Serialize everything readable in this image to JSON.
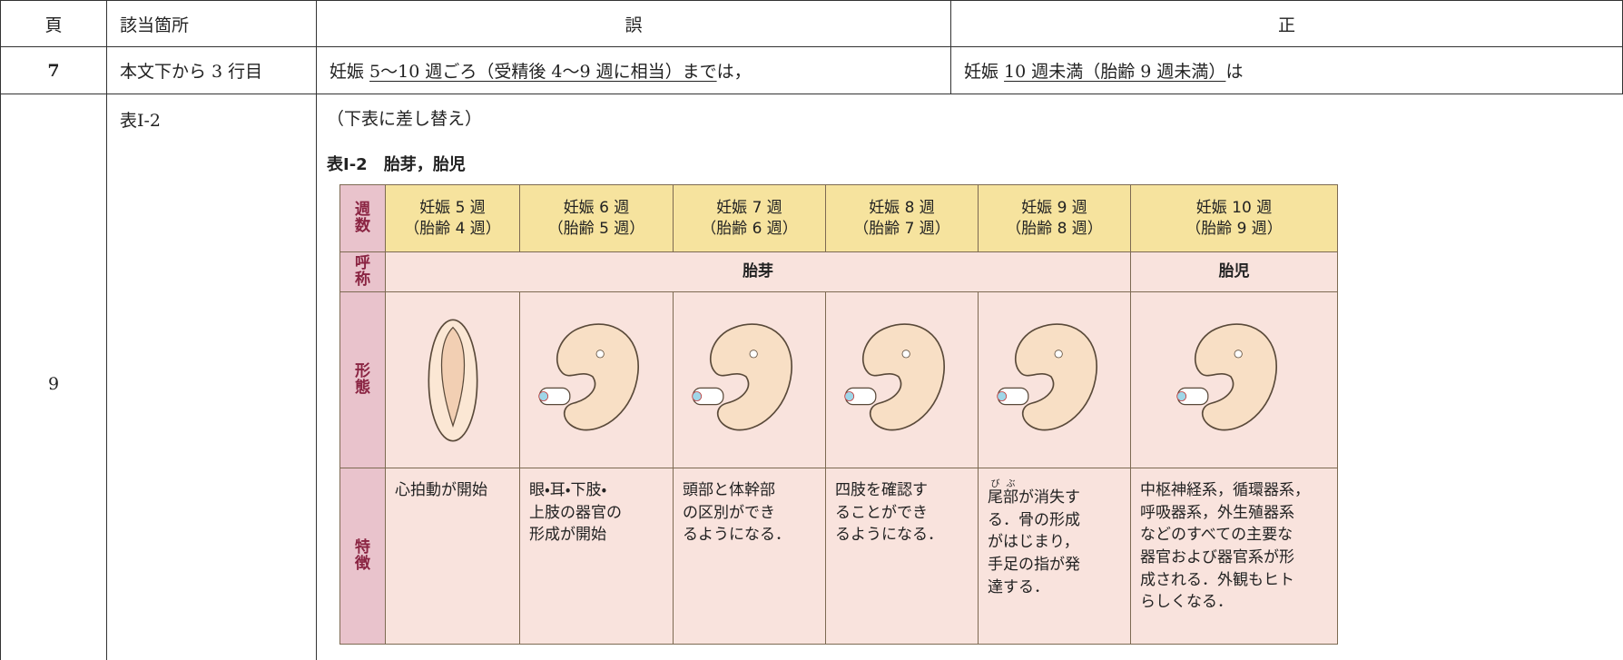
{
  "table": {
    "header": [
      "頁",
      "該当箇所",
      "誤",
      "正"
    ],
    "rows": [
      {
        "page": "7",
        "place": "本文下から 3 行目",
        "wrong": [
          "妊娠 ",
          "5〜10 週ごろ（受精後 4〜9 週に相当）まで",
          "は，"
        ],
        "right": [
          "妊娠 ",
          "10 週未満（胎齢 9 週未満）",
          "は"
        ]
      },
      {
        "page": "9",
        "place": "表Ⅰ-2",
        "note": "（下表に差し替え）"
      }
    ]
  },
  "figure": {
    "caption": "表Ⅰ-2　胎芽，胎児",
    "row_labels": [
      "週数",
      "呼称",
      "形態",
      "特徴"
    ],
    "weeks": [
      [
        "妊娠 5 週",
        "（胎齢 4 週）"
      ],
      [
        "妊娠 6 週",
        "（胎齢 5 週）"
      ],
      [
        "妊娠 7 週",
        "（胎齢 6 週）"
      ],
      [
        "妊娠 8 週",
        "（胎齢 7 週）"
      ],
      [
        "妊娠 9 週",
        "（胎齢 8 週）"
      ],
      [
        "妊娠 10 週",
        "（胎齢 9 週）"
      ]
    ],
    "names": [
      "胎芽",
      "胎児"
    ],
    "features": [
      {
        "lines": [
          "心拍動が開始"
        ]
      },
      {
        "lines": [
          "眼・耳・下肢・",
          "上肢の器官の",
          "形成が開始"
        ]
      },
      {
        "lines": [
          "頭部と体幹部",
          "の区別ができ",
          "るようになる．"
        ]
      },
      {
        "lines": [
          "四肢を確認す",
          "ることができ",
          "るようになる．"
        ]
      },
      {
        "ruby": [
          {
            "base": "尾",
            "rt": "び"
          },
          {
            "base": "部",
            "rt": "ぶ"
          }
        ],
        "lines": [
          "が消失す",
          "る．骨の形成",
          "がはじまり，",
          "手足の指が発",
          "達する．"
        ]
      },
      {
        "lines": [
          "中枢神経系，循環器系，",
          "呼吸器系，外生殖器系",
          "などのすべての主要な",
          "器官および器官系が形",
          "成される．外観もヒト",
          "らしくなる．"
        ]
      }
    ]
  }
}
